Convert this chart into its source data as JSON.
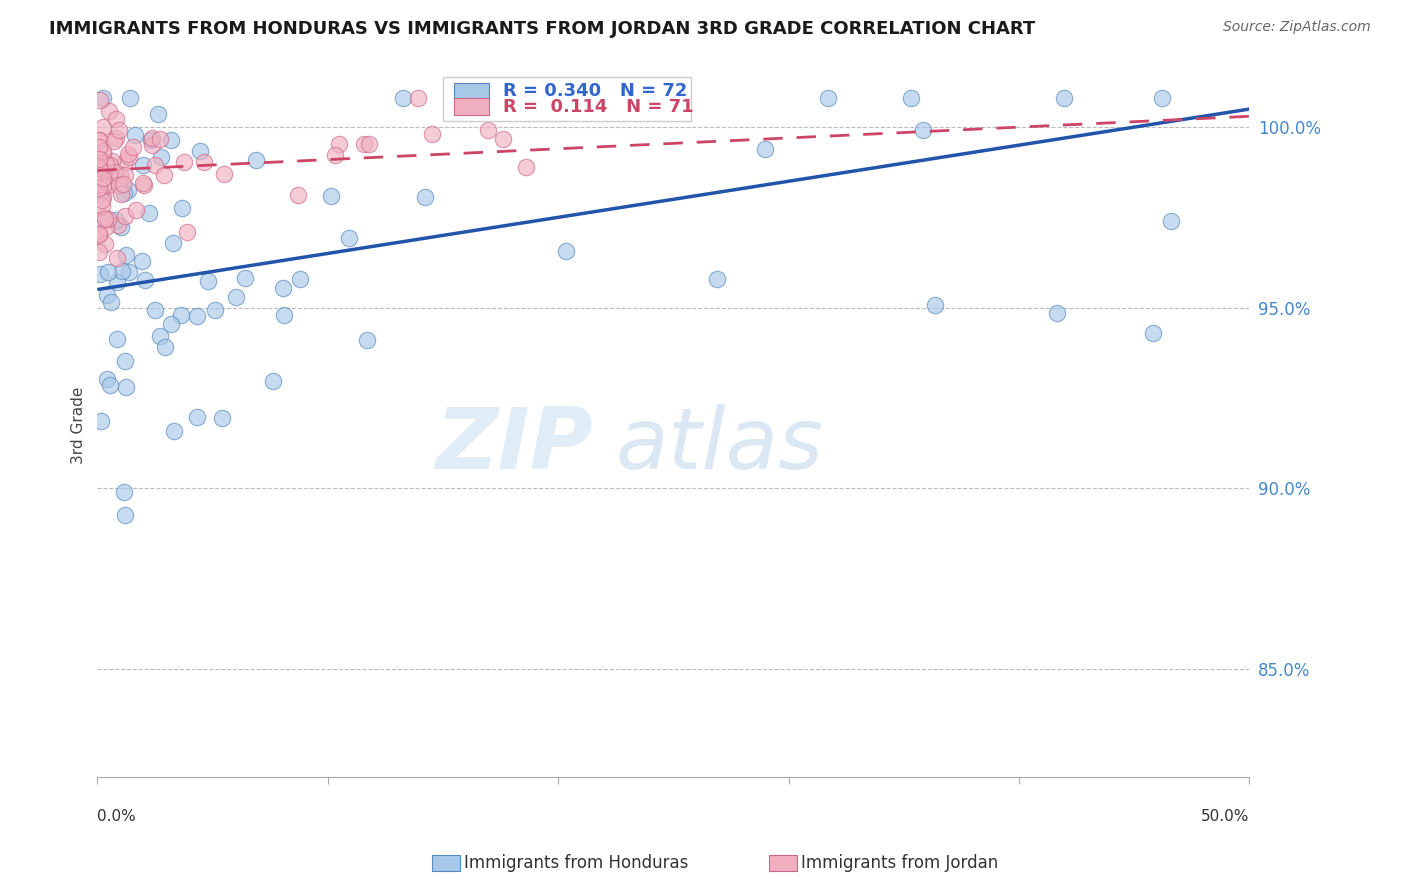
{
  "title": "IMMIGRANTS FROM HONDURAS VS IMMIGRANTS FROM JORDAN 3RD GRADE CORRELATION CHART",
  "source_text": "Source: ZipAtlas.com",
  "ylabel": "3rd Grade",
  "legend_honduras": "Immigrants from Honduras",
  "legend_jordan": "Immigrants from Jordan",
  "r_honduras": 0.34,
  "n_honduras": 72,
  "r_jordan": 0.114,
  "n_jordan": 71,
  "watermark_zip": "ZIP",
  "watermark_atlas": "atlas",
  "color_honduras_fill": "#a8c8e8",
  "color_honduras_edge": "#5588bb",
  "color_honduras_line": "#2255aa",
  "color_jordan_fill": "#f0b0c0",
  "color_jordan_edge": "#cc6688",
  "color_jordan_line": "#cc4466",
  "xlim_min": 0.0,
  "xlim_max": 0.5,
  "ylim_min": 0.82,
  "ylim_max": 1.015,
  "yticks": [
    0.85,
    0.9,
    0.95,
    1.0
  ],
  "ytick_labels": [
    "85.0%",
    "90.0%",
    "95.0%",
    "100.0%"
  ],
  "blue_line_x0": 0.0,
  "blue_line_y0": 0.955,
  "blue_line_x1": 0.5,
  "blue_line_y1": 1.005,
  "pink_line_x0": 0.0,
  "pink_line_y0": 0.988,
  "pink_line_x1": 0.5,
  "pink_line_y1": 1.003
}
